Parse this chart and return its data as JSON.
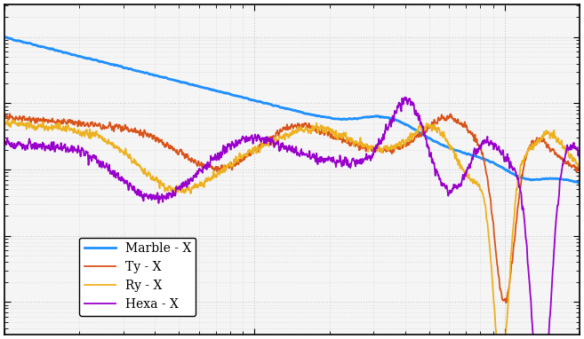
{
  "legend_labels": [
    "Marble - X",
    "Ty - X",
    "Ry - X",
    "Hexa - X"
  ],
  "colors": [
    "#1f8fff",
    "#d95319",
    "#edb120",
    "#9900cc"
  ],
  "linewidths": [
    2.0,
    1.3,
    1.3,
    1.3
  ],
  "grid_color": "#cccccc",
  "background_color": "#ffffff",
  "ax_background": "#f5f5f5"
}
